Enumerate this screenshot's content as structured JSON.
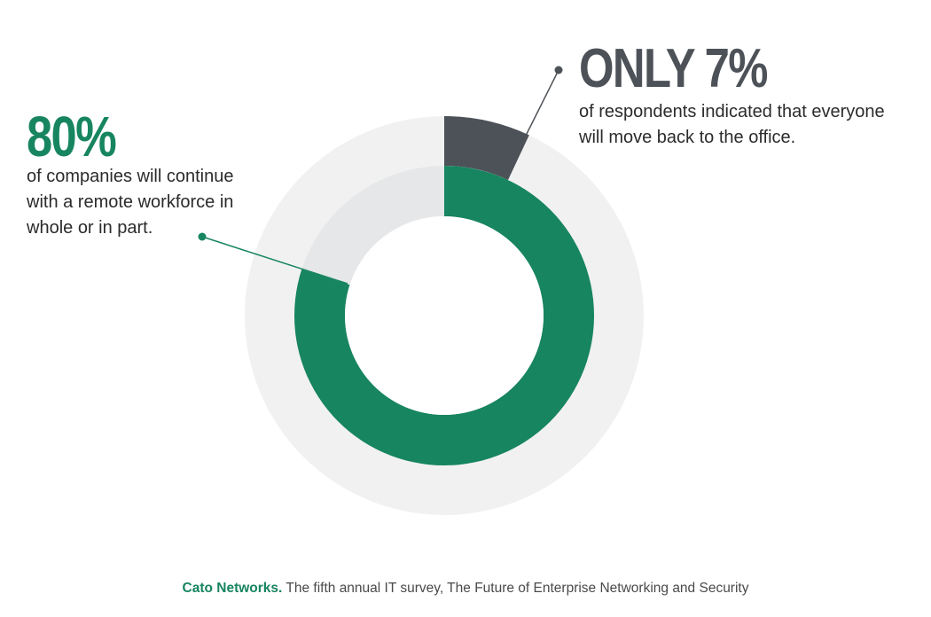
{
  "colors": {
    "accent_green": "#17855f",
    "dark_gray": "#4d5258",
    "track_outer": "#f1f1f2",
    "track_inner": "#e6e7e8",
    "text": "#2b2b2b"
  },
  "stats": {
    "left": {
      "value": "80%",
      "description": "of companies will continue\nwith a remote workforce in\nwhole or in part."
    },
    "right": {
      "value": "ONLY 7%",
      "description": "of respondents indicated that everyone\nwill move back to the office."
    }
  },
  "chart_data": {
    "type": "pie",
    "variant": "nested-donut",
    "rings": [
      {
        "name": "",
        "color": "#4d5258",
        "value_percent": 7,
        "track_color": "#f1f1f2"
      },
      {
        "name": "",
        "color": "#17855f",
        "value_percent": 80,
        "track_color": "#e6e7e8"
      }
    ],
    "start_angle": "12 o'clock",
    "direction": "clockwise"
  },
  "footer": {
    "brand": "Cato Networks.",
    "source": " The fifth annual IT survey, The Future of Enterprise Networking and Security"
  }
}
